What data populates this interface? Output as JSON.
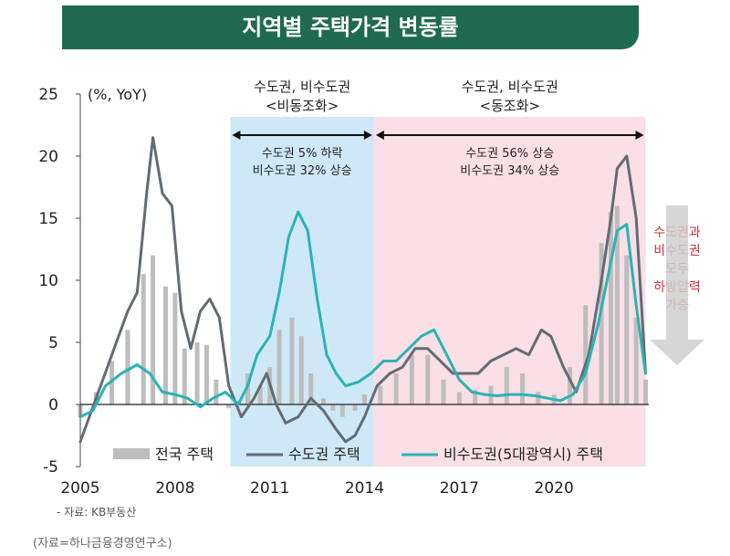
{
  "header": {
    "title": "지역별 주택가격 변동률"
  },
  "chart_data": {
    "type": "line",
    "title": "지역별 주택가격 변동률",
    "unit_label": "(%, YoY)",
    "x_range": [
      2005.0,
      2023.0
    ],
    "ylim": [
      -5,
      25
    ],
    "y_ticks": [
      25,
      20,
      15,
      10,
      5,
      0,
      -5
    ],
    "x_tick_labels": [
      {
        "x": 2005,
        "label": "2005"
      },
      {
        "x": 2008,
        "label": "2008"
      },
      {
        "x": 2011,
        "label": "2011"
      },
      {
        "x": 2014,
        "label": "2014"
      },
      {
        "x": 2017,
        "label": "2017"
      },
      {
        "x": 2020,
        "label": "2020"
      }
    ],
    "periods": [
      {
        "x_start": 2009.75,
        "x_end": 2014.3,
        "color": "#cfe8f7",
        "heading_line1": "수도권, 비수도권",
        "heading_line2": "<비동조화>",
        "note_line1": "수도권 5% 하락",
        "note_line2": "비수도권 32% 상승"
      },
      {
        "x_start": 2014.3,
        "x_end": 2022.9,
        "color": "#fadfe6",
        "heading_line1": "수도권, 비수도권",
        "heading_line2": "<동조화>",
        "note_line1": "수도권 56% 상승",
        "note_line2": "비수도권 34% 상승"
      }
    ],
    "series": [
      {
        "name": "전국 주택",
        "kind": "bar",
        "color": "#bdbdbd",
        "x": [
          2005.0,
          2005.5,
          2006.0,
          2006.5,
          2007.0,
          2007.3,
          2007.7,
          2008.0,
          2008.3,
          2008.7,
          2009.0,
          2009.3,
          2009.7,
          2010.0,
          2010.3,
          2010.7,
          2011.0,
          2011.3,
          2011.7,
          2012.0,
          2012.3,
          2012.7,
          2013.0,
          2013.3,
          2013.7,
          2014.0,
          2014.5,
          2015.0,
          2015.5,
          2016.0,
          2016.5,
          2017.0,
          2017.5,
          2018.0,
          2018.5,
          2019.0,
          2019.5,
          2020.0,
          2020.5,
          2021.0,
          2021.5,
          2021.8,
          2022.0,
          2022.3,
          2022.6,
          2022.9
        ],
        "values": [
          -1.0,
          1.0,
          3.5,
          6.0,
          10.5,
          12.0,
          9.5,
          9.0,
          4.5,
          5.0,
          4.8,
          2.0,
          -0.3,
          0.3,
          2.5,
          1.5,
          3.0,
          6.0,
          7.0,
          5.5,
          2.5,
          0.5,
          -0.5,
          -1.0,
          -0.5,
          0.8,
          1.5,
          2.5,
          4.0,
          4.0,
          2.0,
          1.0,
          1.2,
          1.5,
          3.0,
          2.5,
          1.0,
          0.8,
          3.0,
          8.0,
          13.0,
          15.5,
          16.0,
          12.0,
          7.0,
          2.0
        ]
      },
      {
        "name": "수도권 주택",
        "kind": "line",
        "color": "#636b73",
        "x": [
          2005.0,
          2005.5,
          2006.0,
          2006.5,
          2006.8,
          2007.1,
          2007.3,
          2007.6,
          2007.9,
          2008.2,
          2008.5,
          2008.8,
          2009.1,
          2009.4,
          2009.7,
          2010.1,
          2010.5,
          2010.9,
          2011.2,
          2011.5,
          2011.9,
          2012.3,
          2012.7,
          2013.1,
          2013.4,
          2013.7,
          2014.0,
          2014.4,
          2014.8,
          2015.2,
          2015.6,
          2016.0,
          2016.4,
          2016.8,
          2017.2,
          2017.6,
          2018.0,
          2018.4,
          2018.8,
          2019.2,
          2019.6,
          2019.9,
          2020.3,
          2020.7,
          2021.1,
          2021.5,
          2021.8,
          2022.0,
          2022.3,
          2022.6,
          2022.9
        ],
        "values": [
          -3.0,
          0.5,
          4.0,
          7.5,
          9.0,
          17.0,
          21.5,
          17.0,
          16.0,
          7.5,
          4.5,
          7.5,
          8.5,
          7.0,
          1.5,
          -1.0,
          0.5,
          2.5,
          0.0,
          -1.5,
          -1.0,
          0.5,
          -0.5,
          -2.0,
          -3.0,
          -2.5,
          -1.0,
          1.5,
          2.5,
          3.0,
          4.5,
          4.5,
          3.5,
          2.5,
          2.5,
          2.5,
          3.5,
          4.0,
          4.5,
          4.0,
          6.0,
          5.5,
          3.0,
          1.0,
          4.0,
          10.0,
          15.0,
          19.0,
          20.0,
          15.0,
          2.5
        ]
      },
      {
        "name": "비수도권(5대광역시) 주택",
        "kind": "line",
        "color": "#2bb3b3",
        "x": [
          2005.0,
          2005.4,
          2005.8,
          2006.3,
          2006.8,
          2007.2,
          2007.6,
          2008.0,
          2008.4,
          2008.8,
          2009.2,
          2009.6,
          2010.0,
          2010.3,
          2010.6,
          2011.0,
          2011.3,
          2011.6,
          2011.9,
          2012.2,
          2012.5,
          2012.8,
          2013.1,
          2013.4,
          2013.8,
          2014.2,
          2014.6,
          2015.0,
          2015.4,
          2015.8,
          2016.2,
          2016.6,
          2017.0,
          2017.4,
          2017.8,
          2018.2,
          2018.6,
          2019.0,
          2019.4,
          2019.8,
          2020.2,
          2020.6,
          2021.0,
          2021.4,
          2021.8,
          2022.0,
          2022.3,
          2022.6,
          2022.9
        ],
        "values": [
          -1.0,
          -0.5,
          1.5,
          2.5,
          3.2,
          2.5,
          1.0,
          0.8,
          0.5,
          -0.2,
          0.5,
          1.0,
          0.0,
          1.5,
          4.0,
          5.5,
          9.0,
          13.5,
          15.5,
          14.0,
          8.5,
          4.0,
          2.5,
          1.5,
          1.8,
          2.5,
          3.5,
          3.5,
          4.5,
          5.5,
          6.0,
          4.0,
          2.0,
          1.0,
          0.8,
          0.7,
          0.8,
          0.8,
          0.7,
          0.5,
          0.3,
          0.8,
          2.5,
          6.5,
          11.5,
          14.0,
          14.5,
          8.0,
          2.5
        ]
      }
    ],
    "side_note_lines": [
      "수도권과",
      "비수도권",
      "모두",
      "하방압력",
      "가중"
    ],
    "source_note": "- 자료: KB부동산"
  },
  "footer": {
    "source": "(자료=하나금융경영연구소)"
  }
}
